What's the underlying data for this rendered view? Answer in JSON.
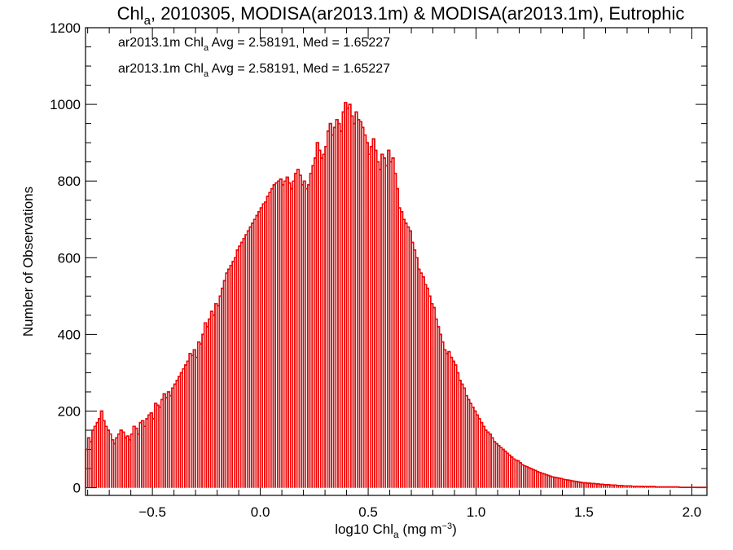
{
  "chart_data": {
    "type": "histogram",
    "title": {
      "prefix": "Chl",
      "sub": "a",
      "rest": ", 2010305, MODISA(ar2013.1m) & MODISA(ar2013.1m), Eutrophic"
    },
    "xlabel": {
      "prefix": "log10 Chl",
      "sub": "a",
      "rest": " (mg m",
      "sup": "−3",
      "end": ")"
    },
    "ylabel": "Number of Observations",
    "xlim": [
      -0.81,
      2.07
    ],
    "ylim": [
      -20,
      1200
    ],
    "x_ticks": [
      -0.5,
      0.0,
      0.5,
      1.0,
      1.5,
      2.0
    ],
    "x_tick_labels": [
      "−0.5",
      "0.0",
      "0.5",
      "1.0",
      "1.5",
      "2.0"
    ],
    "y_ticks": [
      0,
      200,
      400,
      600,
      800,
      1000,
      1200
    ],
    "y_tick_labels": [
      "0",
      "200",
      "400",
      "600",
      "800",
      "1000",
      "1200"
    ],
    "x_minor_step": 0.1,
    "y_minor_step": 50,
    "legend_placement": "top-left",
    "series": [
      {
        "color": "#000000",
        "label": {
          "prefix": "ar2013.1m Chl",
          "sub": "a",
          "rest": " Avg = 2.58191, Med = 1.65227"
        }
      },
      {
        "color": "#ff0000",
        "label": {
          "prefix": "ar2013.1m Chl",
          "sub": "a",
          "rest": " Avg = 2.58191, Med = 1.65227"
        }
      }
    ],
    "bin_width": 0.01,
    "bin_start": -0.81,
    "counts": [
      100,
      130,
      120,
      150,
      160,
      170,
      180,
      200,
      175,
      160,
      150,
      140,
      125,
      115,
      130,
      140,
      150,
      145,
      130,
      135,
      125,
      140,
      160,
      155,
      140,
      170,
      175,
      160,
      180,
      190,
      195,
      180,
      220,
      215,
      210,
      230,
      245,
      235,
      250,
      240,
      260,
      270,
      280,
      290,
      300,
      310,
      320,
      330,
      350,
      345,
      360,
      340,
      380,
      375,
      400,
      430,
      420,
      440,
      460,
      450,
      480,
      475,
      500,
      520,
      540,
      560,
      570,
      580,
      590,
      600,
      620,
      630,
      640,
      650,
      660,
      670,
      680,
      690,
      700,
      710,
      720,
      730,
      740,
      745,
      760,
      770,
      780,
      790,
      795,
      800,
      805,
      790,
      800,
      810,
      795,
      780,
      800,
      820,
      830,
      815,
      790,
      800,
      780,
      790,
      820,
      840,
      860,
      900,
      880,
      860,
      870,
      890,
      930,
      950,
      920,
      940,
      960,
      950,
      930,
      980,
      1005,
      990,
      1000,
      970,
      950,
      980,
      960,
      955,
      940,
      920,
      900,
      870,
      890,
      910,
      880,
      850,
      830,
      870,
      860,
      840,
      880,
      850,
      860,
      820,
      780,
      730,
      720,
      700,
      690,
      680,
      670,
      640,
      620,
      600,
      570,
      560,
      550,
      530,
      520,
      500,
      480,
      470,
      440,
      420,
      400,
      380,
      360,
      350,
      355,
      340,
      330,
      320,
      300,
      280,
      270,
      260,
      240,
      230,
      220,
      210,
      200,
      190,
      180,
      170,
      160,
      150,
      145,
      140,
      130,
      120,
      115,
      110,
      105,
      100,
      95,
      90,
      85,
      80,
      75,
      72,
      70,
      65,
      60,
      57,
      55,
      52,
      50,
      47,
      45,
      42,
      40,
      38,
      36,
      34,
      32,
      30,
      28,
      27,
      26,
      25,
      24,
      22,
      21,
      20,
      19,
      18,
      17,
      16,
      15,
      14,
      13,
      13,
      12,
      12,
      11,
      11,
      10,
      10,
      9,
      9,
      8,
      8,
      8,
      7,
      7,
      7,
      6,
      6,
      6,
      5,
      5,
      5,
      5,
      4,
      4,
      4,
      4,
      4,
      3,
      3,
      3,
      3,
      3,
      3,
      2,
      2,
      2,
      2,
      2,
      2,
      2,
      2,
      2,
      2,
      2,
      1,
      1,
      1,
      1,
      1,
      1,
      1,
      1,
      1,
      1,
      1,
      1,
      1
    ]
  }
}
